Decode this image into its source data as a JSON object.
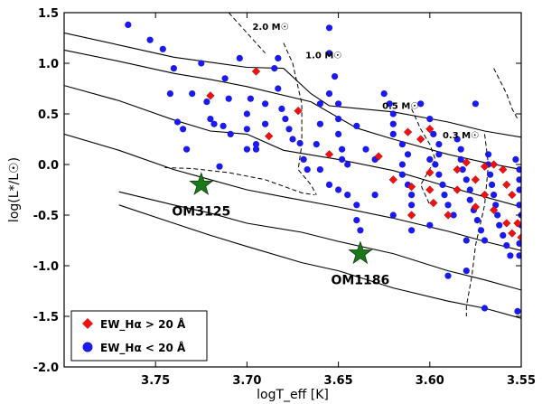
{
  "chart_data": {
    "type": "scatter",
    "xlabel": "logT_eff [K]",
    "ylabel": "log(L*/L☉)",
    "xlim": [
      3.8,
      3.55
    ],
    "ylim": [
      -2.0,
      1.5
    ],
    "x_ticks": [
      "3.75",
      "3.70",
      "3.65",
      "3.60",
      "3.55"
    ],
    "x_tick_values": [
      3.75,
      3.7,
      3.65,
      3.6,
      3.55
    ],
    "y_ticks": [
      "1.5",
      "1.0",
      "0.5",
      "0.0",
      "-0.5",
      "-1.0",
      "-1.5",
      "-2.0"
    ],
    "y_tick_values": [
      1.5,
      1.0,
      0.5,
      0.0,
      -0.5,
      -1.0,
      -1.5,
      -2.0
    ],
    "legend": {
      "placement": "bottom-left",
      "entries": [
        {
          "label": "EW_Hα > 20 Å",
          "color": "#ee1111",
          "marker": "diamond"
        },
        {
          "label": "EW_Hα < 20 Å",
          "color": "#1a1aee",
          "marker": "circle"
        }
      ]
    },
    "isochrones": [
      [
        [
          3.8,
          1.3
        ],
        [
          3.77,
          1.18
        ],
        [
          3.74,
          1.06
        ],
        [
          3.7,
          0.96
        ],
        [
          3.68,
          0.95
        ],
        [
          3.665,
          0.7
        ],
        [
          3.655,
          0.58
        ],
        [
          3.62,
          0.52
        ],
        [
          3.59,
          0.42
        ],
        [
          3.57,
          0.33
        ],
        [
          3.55,
          0.27
        ]
      ],
      [
        [
          3.8,
          1.13
        ],
        [
          3.77,
          1.02
        ],
        [
          3.74,
          0.9
        ],
        [
          3.72,
          0.84
        ],
        [
          3.7,
          0.77
        ],
        [
          3.665,
          0.62
        ],
        [
          3.64,
          0.36
        ],
        [
          3.62,
          0.25
        ],
        [
          3.59,
          0.1
        ],
        [
          3.57,
          0.02
        ],
        [
          3.55,
          -0.05
        ]
      ],
      [
        [
          3.8,
          0.78
        ],
        [
          3.77,
          0.63
        ],
        [
          3.74,
          0.44
        ],
        [
          3.72,
          0.33
        ],
        [
          3.7,
          0.3
        ],
        [
          3.68,
          0.14
        ],
        [
          3.65,
          0.05
        ],
        [
          3.62,
          -0.06
        ],
        [
          3.59,
          -0.22
        ],
        [
          3.57,
          -0.32
        ],
        [
          3.55,
          -0.42
        ]
      ],
      [
        [
          3.8,
          0.3
        ],
        [
          3.77,
          0.14
        ],
        [
          3.74,
          -0.05
        ],
        [
          3.72,
          -0.15
        ],
        [
          3.7,
          -0.25
        ],
        [
          3.68,
          -0.32
        ],
        [
          3.65,
          -0.42
        ],
        [
          3.62,
          -0.53
        ],
        [
          3.59,
          -0.66
        ],
        [
          3.57,
          -0.76
        ],
        [
          3.55,
          -0.85
        ]
      ],
      [
        [
          3.77,
          -0.27
        ],
        [
          3.74,
          -0.4
        ],
        [
          3.72,
          -0.48
        ],
        [
          3.7,
          -0.58
        ],
        [
          3.67,
          -0.67
        ],
        [
          3.65,
          -0.76
        ],
        [
          3.62,
          -0.88
        ],
        [
          3.59,
          -1.05
        ],
        [
          3.57,
          -1.14
        ],
        [
          3.55,
          -1.24
        ]
      ],
      [
        [
          3.77,
          -0.4
        ],
        [
          3.74,
          -0.58
        ],
        [
          3.72,
          -0.7
        ],
        [
          3.7,
          -0.81
        ],
        [
          3.67,
          -0.97
        ],
        [
          3.65,
          -1.05
        ],
        [
          3.62,
          -1.22
        ],
        [
          3.59,
          -1.35
        ],
        [
          3.57,
          -1.42
        ],
        [
          3.55,
          -1.52
        ]
      ]
    ],
    "mass_tracks": [
      {
        "label": "2.0 M☉",
        "label_at": [
          3.697,
          1.33
        ],
        "points": [
          [
            3.71,
            1.5
          ],
          [
            3.705,
            1.4
          ],
          [
            3.7,
            1.3
          ],
          [
            3.695,
            1.2
          ],
          [
            3.69,
            1.1
          ]
        ]
      },
      {
        "label": "1.0 M☉",
        "label_at": [
          3.668,
          1.05
        ],
        "points": [
          [
            3.68,
            1.2
          ],
          [
            3.675,
            1.0
          ],
          [
            3.67,
            0.6
          ],
          [
            3.67,
            0.2
          ],
          [
            3.672,
            -0.05
          ],
          [
            3.665,
            -0.2
          ],
          [
            3.662,
            -0.3
          ]
        ]
      },
      {
        "label": "0.5 M☉",
        "label_at": [
          3.626,
          0.55
        ],
        "points": [
          [
            3.61,
            0.55
          ],
          [
            3.605,
            0.35
          ],
          [
            3.6,
            0.2
          ],
          [
            3.597,
            0.05
          ],
          [
            3.605,
            -0.2
          ],
          [
            3.6,
            -0.4
          ]
        ]
      },
      {
        "label": "0.3 M☉",
        "label_at": [
          3.593,
          0.26
        ],
        "points": [
          [
            3.57,
            0.3
          ],
          [
            3.568,
            0.0
          ],
          [
            3.57,
            -0.4
          ],
          [
            3.575,
            -0.8
          ],
          [
            3.577,
            -1.1
          ],
          [
            3.58,
            -1.4
          ],
          [
            3.58,
            -1.5
          ]
        ]
      },
      {
        "label": "",
        "label_at": null,
        "points": [
          [
            3.745,
            -0.03
          ],
          [
            3.73,
            -0.04
          ],
          [
            3.71,
            -0.08
          ],
          [
            3.69,
            -0.15
          ],
          [
            3.67,
            -0.28
          ],
          [
            3.663,
            -0.3
          ]
        ]
      },
      {
        "label": "",
        "label_at": null,
        "points": [
          [
            3.565,
            0.95
          ],
          [
            3.558,
            0.7
          ],
          [
            3.555,
            0.55
          ],
          [
            3.552,
            0.45
          ]
        ]
      }
    ],
    "stars": [
      {
        "label": "OM3125",
        "x": 3.725,
        "y": -0.2,
        "color": "#1a7a1a"
      },
      {
        "label": "OM1186",
        "x": 3.638,
        "y": -0.88,
        "color": "#1a7a1a"
      }
    ],
    "series": [
      {
        "name": "EW_Hα > 20 Å",
        "color": "#ee1111",
        "marker": "diamond",
        "points": [
          [
            3.695,
            0.92
          ],
          [
            3.72,
            0.68
          ],
          [
            3.688,
            0.28
          ],
          [
            3.672,
            0.53
          ],
          [
            3.655,
            0.1
          ],
          [
            3.628,
            0.08
          ],
          [
            3.612,
            0.32
          ],
          [
            3.605,
            0.25
          ],
          [
            3.6,
            -0.08
          ],
          [
            3.598,
            -0.38
          ],
          [
            3.585,
            -0.05
          ],
          [
            3.58,
            0.02
          ],
          [
            3.575,
            -0.15
          ],
          [
            3.57,
            -0.3
          ],
          [
            3.565,
            -0.45
          ],
          [
            3.558,
            -0.58
          ],
          [
            3.555,
            -0.68
          ],
          [
            3.55,
            -0.72
          ],
          [
            3.56,
            -0.05
          ],
          [
            3.6,
            0.35
          ],
          [
            3.61,
            -0.22
          ],
          [
            3.59,
            -0.5
          ],
          [
            3.57,
            -0.02
          ],
          [
            3.555,
            -0.3
          ],
          [
            3.62,
            -0.15
          ],
          [
            3.585,
            -0.25
          ],
          [
            3.565,
            0.0
          ],
          [
            3.558,
            -0.2
          ],
          [
            3.552,
            -0.58
          ],
          [
            3.61,
            -0.5
          ],
          [
            3.6,
            -0.25
          ],
          [
            3.575,
            -0.42
          ]
        ]
      },
      {
        "name": "EW_Hα < 20 Å",
        "color": "#1a1aee",
        "marker": "circle",
        "points": [
          [
            3.765,
            1.38
          ],
          [
            3.753,
            1.23
          ],
          [
            3.746,
            1.14
          ],
          [
            3.738,
            0.42
          ],
          [
            3.733,
            0.15
          ],
          [
            3.735,
            0.35
          ],
          [
            3.72,
            0.45
          ],
          [
            3.718,
            0.4
          ],
          [
            3.713,
            0.38
          ],
          [
            3.712,
            0.85
          ],
          [
            3.709,
            0.3
          ],
          [
            3.704,
            1.05
          ],
          [
            3.7,
            0.15
          ],
          [
            3.722,
            0.62
          ],
          [
            3.715,
            -0.02
          ],
          [
            3.683,
            1.05
          ],
          [
            3.683,
            0.75
          ],
          [
            3.681,
            0.55
          ],
          [
            3.679,
            0.45
          ],
          [
            3.677,
            0.35
          ],
          [
            3.675,
            0.25
          ],
          [
            3.671,
            0.21
          ],
          [
            3.669,
            0.05
          ],
          [
            3.667,
            -0.05
          ],
          [
            3.69,
            0.6
          ],
          [
            3.69,
            0.4
          ],
          [
            3.695,
            0.15
          ],
          [
            3.698,
            0.65
          ],
          [
            3.655,
            1.35
          ],
          [
            3.655,
            1.1
          ],
          [
            3.652,
            0.87
          ],
          [
            3.655,
            0.7
          ],
          [
            3.65,
            0.6
          ],
          [
            3.65,
            0.45
          ],
          [
            3.65,
            0.3
          ],
          [
            3.648,
            0.15
          ],
          [
            3.648,
            0.05
          ],
          [
            3.66,
            -0.05
          ],
          [
            3.655,
            -0.2
          ],
          [
            3.65,
            -0.25
          ],
          [
            3.645,
            -0.3
          ],
          [
            3.64,
            -0.4
          ],
          [
            3.64,
            -0.55
          ],
          [
            3.638,
            -0.65
          ],
          [
            3.625,
            0.7
          ],
          [
            3.622,
            0.6
          ],
          [
            3.62,
            0.5
          ],
          [
            3.62,
            0.4
          ],
          [
            3.62,
            0.3
          ],
          [
            3.615,
            0.2
          ],
          [
            3.612,
            0.1
          ],
          [
            3.615,
            0.0
          ],
          [
            3.615,
            -0.1
          ],
          [
            3.612,
            -0.2
          ],
          [
            3.61,
            -0.3
          ],
          [
            3.61,
            -0.4
          ],
          [
            3.605,
            0.6
          ],
          [
            3.6,
            0.45
          ],
          [
            3.598,
            0.3
          ],
          [
            3.595,
            0.2
          ],
          [
            3.595,
            0.1
          ],
          [
            3.597,
            0.0
          ],
          [
            3.595,
            -0.1
          ],
          [
            3.593,
            -0.2
          ],
          [
            3.592,
            -0.3
          ],
          [
            3.59,
            -0.4
          ],
          [
            3.587,
            -0.5
          ],
          [
            3.585,
            0.25
          ],
          [
            3.583,
            0.15
          ],
          [
            3.583,
            0.05
          ],
          [
            3.582,
            -0.05
          ],
          [
            3.58,
            -0.15
          ],
          [
            3.578,
            -0.25
          ],
          [
            3.578,
            -0.35
          ],
          [
            3.576,
            -0.45
          ],
          [
            3.574,
            -0.55
          ],
          [
            3.572,
            -0.65
          ],
          [
            3.57,
            -0.75
          ],
          [
            3.568,
            0.1
          ],
          [
            3.568,
            0.0
          ],
          [
            3.567,
            -0.1
          ],
          [
            3.566,
            -0.2
          ],
          [
            3.565,
            -0.3
          ],
          [
            3.564,
            -0.4
          ],
          [
            3.563,
            -0.5
          ],
          [
            3.562,
            -0.6
          ],
          [
            3.56,
            -0.7
          ],
          [
            3.558,
            -0.8
          ],
          [
            3.556,
            -0.9
          ],
          [
            3.553,
            0.05
          ],
          [
            3.551,
            -0.05
          ],
          [
            3.551,
            -0.15
          ],
          [
            3.551,
            -0.25
          ],
          [
            3.551,
            -0.4
          ],
          [
            3.55,
            -0.5
          ],
          [
            3.55,
            -0.6
          ],
          [
            3.551,
            -0.78
          ],
          [
            3.551,
            -0.9
          ],
          [
            3.552,
            -1.45
          ],
          [
            3.57,
            -1.42
          ],
          [
            3.58,
            -1.05
          ],
          [
            3.58,
            -0.75
          ],
          [
            3.59,
            -1.1
          ],
          [
            3.6,
            -0.6
          ],
          [
            3.62,
            -0.5
          ],
          [
            3.61,
            -0.65
          ],
          [
            3.63,
            -0.3
          ],
          [
            3.63,
            0.05
          ],
          [
            3.645,
            0.0
          ],
          [
            3.74,
            0.95
          ],
          [
            3.73,
            0.7
          ],
          [
            3.742,
            0.7
          ],
          [
            3.725,
            1.0
          ],
          [
            3.71,
            0.65
          ],
          [
            3.7,
            0.5
          ],
          [
            3.7,
            0.35
          ],
          [
            3.695,
            0.2
          ],
          [
            3.685,
            0.95
          ],
          [
            3.66,
            0.6
          ],
          [
            3.66,
            0.4
          ],
          [
            3.662,
            0.2
          ],
          [
            3.64,
            0.38
          ],
          [
            3.635,
            0.15
          ],
          [
            3.6,
            0.05
          ],
          [
            3.575,
            0.6
          ]
        ]
      }
    ]
  }
}
